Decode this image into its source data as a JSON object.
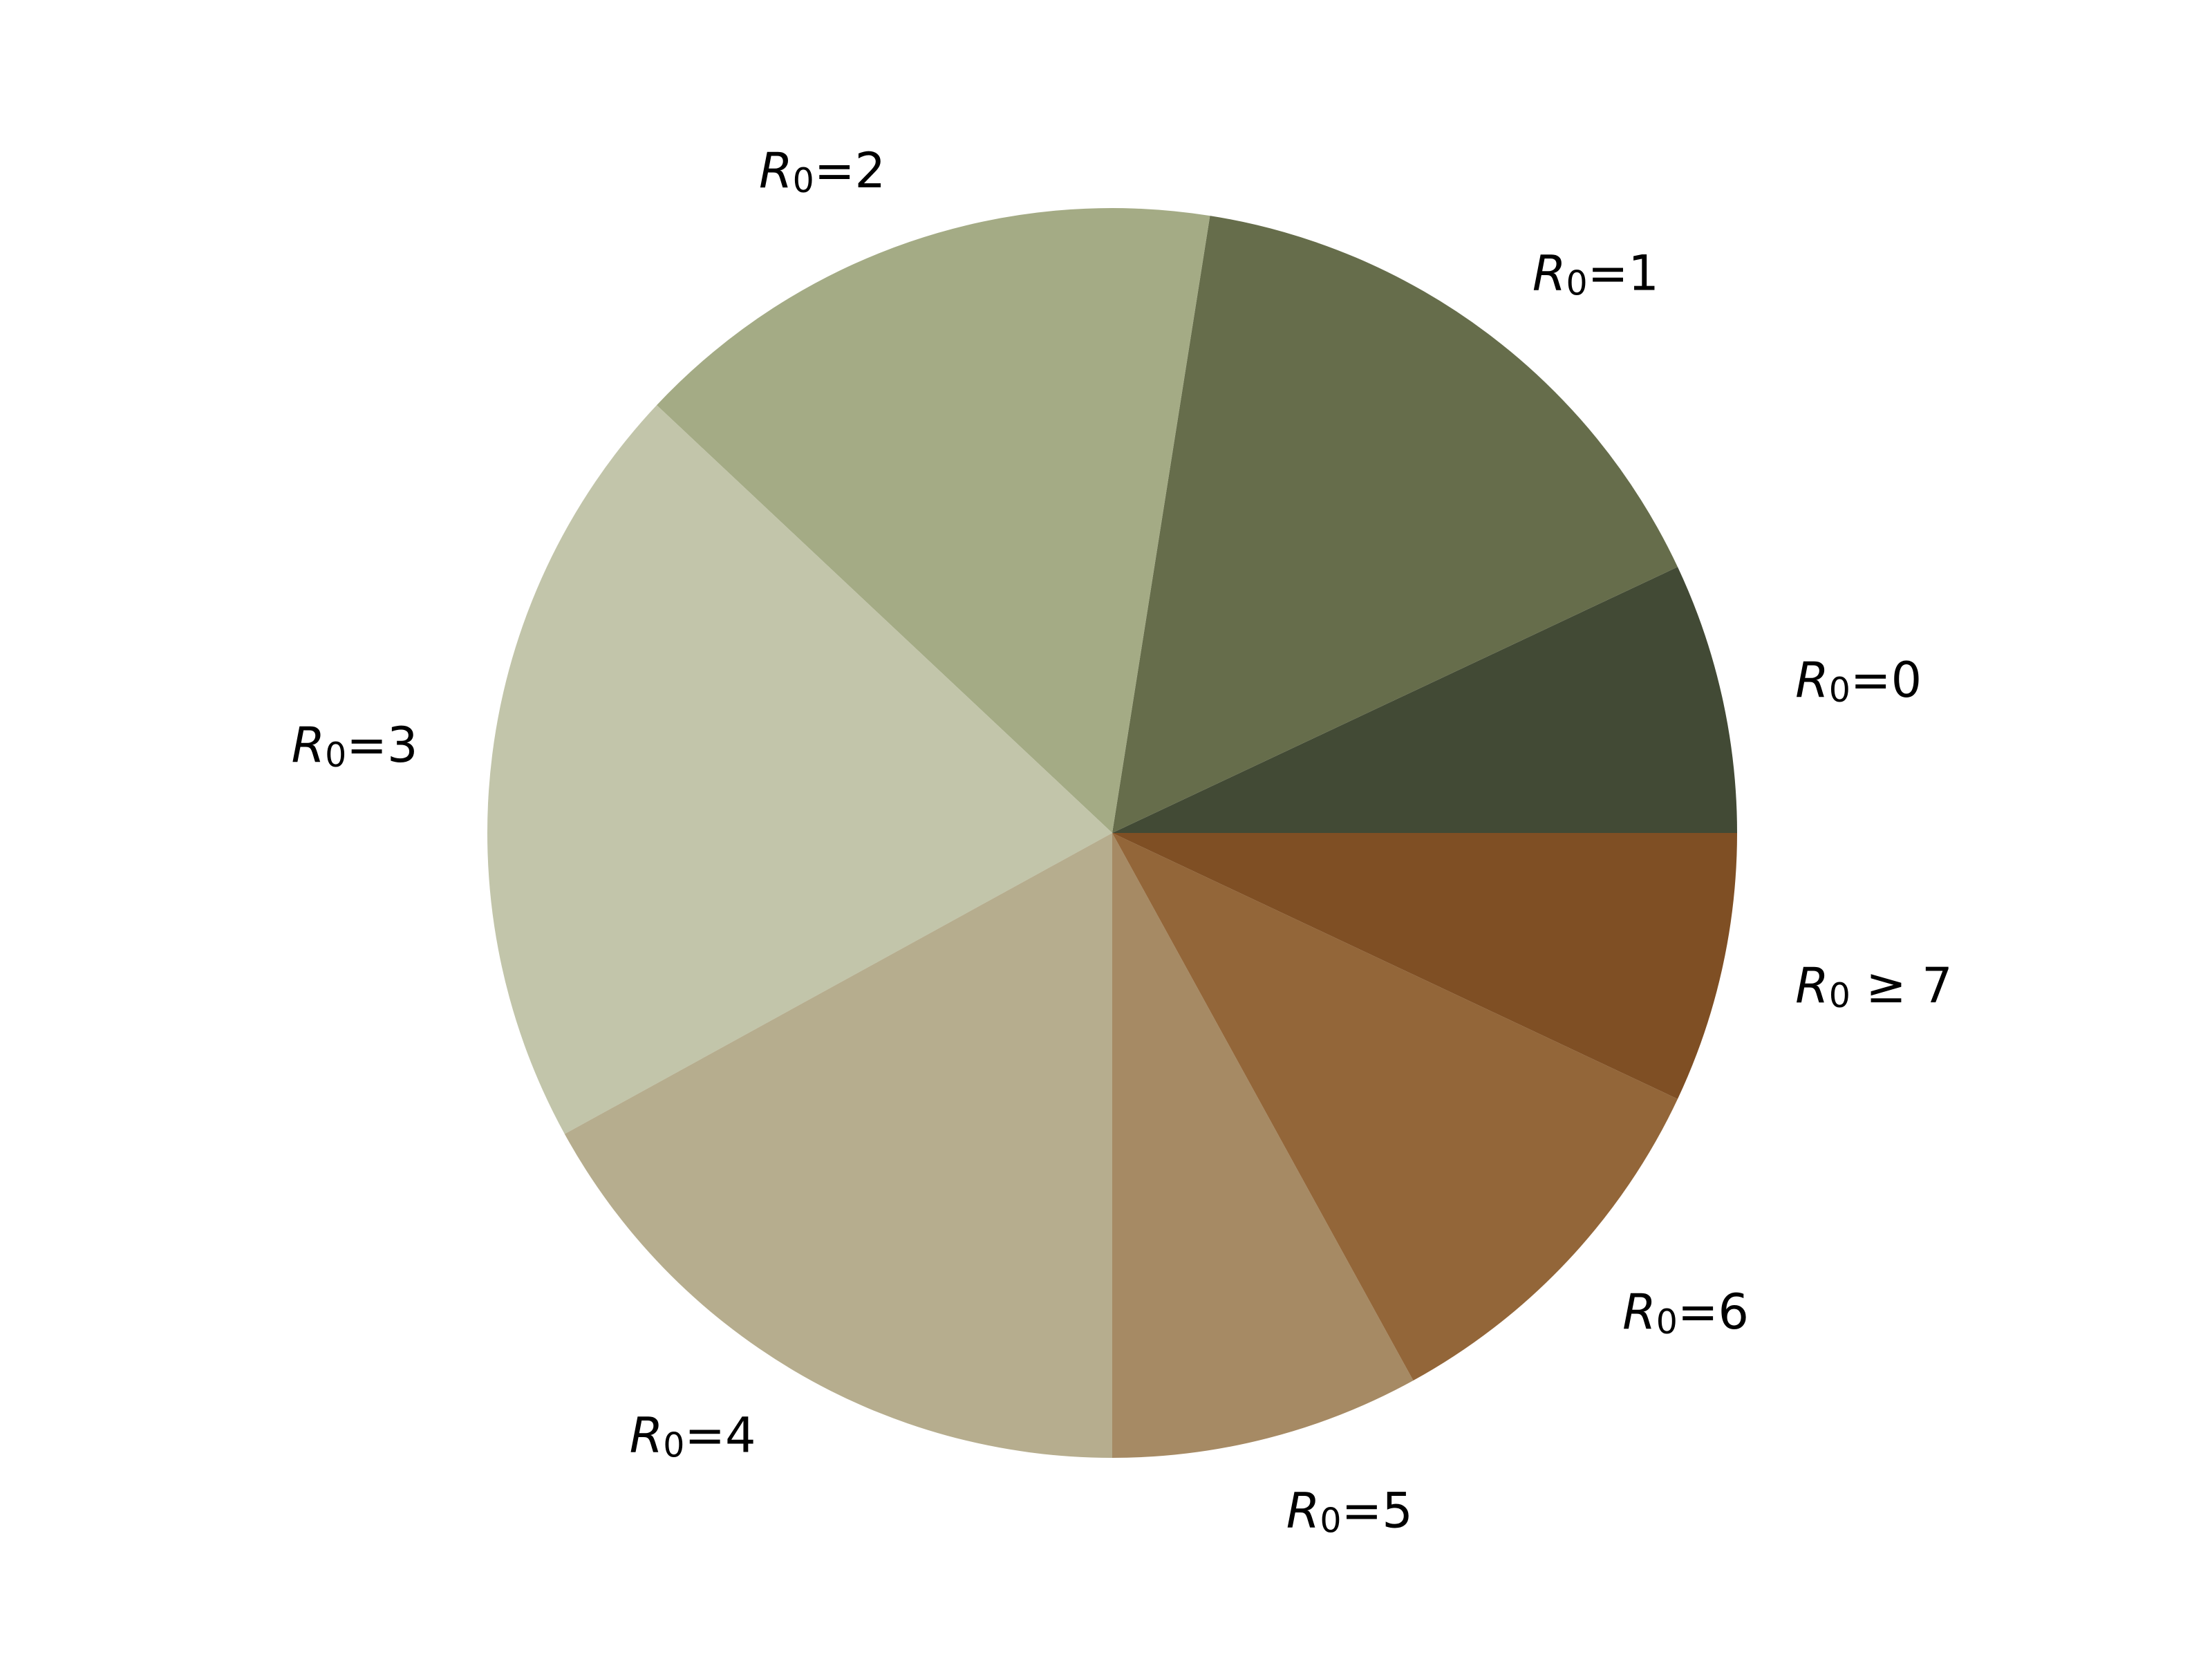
{
  "chart_data": {
    "type": "pie",
    "title": "",
    "start_angle_deg": 0,
    "direction": "counterclockwise",
    "legend": "none",
    "slices": [
      {
        "label_symbol": "R",
        "label_subscript": "0",
        "label_rest": "=0",
        "value": 7.0,
        "color": "#424a35"
      },
      {
        "label_symbol": "R",
        "label_subscript": "0",
        "label_rest": "=1",
        "value": 15.5,
        "color": "#666d4b"
      },
      {
        "label_symbol": "R",
        "label_subscript": "0",
        "label_rest": "=2",
        "value": 15.5,
        "color": "#a4ab85"
      },
      {
        "label_symbol": "R",
        "label_subscript": "0",
        "label_rest": "=3",
        "value": 20.0,
        "color": "#c2c5aa"
      },
      {
        "label_symbol": "R",
        "label_subscript": "0",
        "label_rest": "=4",
        "value": 17.0,
        "color": "#b6ad8e"
      },
      {
        "label_symbol": "R",
        "label_subscript": "0",
        "label_rest": "=5",
        "value": 8.0,
        "color": "#a68a64"
      },
      {
        "label_symbol": "R",
        "label_subscript": "0",
        "label_rest": "=6",
        "value": 10.0,
        "color": "#936639"
      },
      {
        "label_symbol": "R",
        "label_subscript": "0",
        "label_rest": " ≥ 7",
        "value": 7.0,
        "color": "#7f4f24"
      }
    ]
  }
}
